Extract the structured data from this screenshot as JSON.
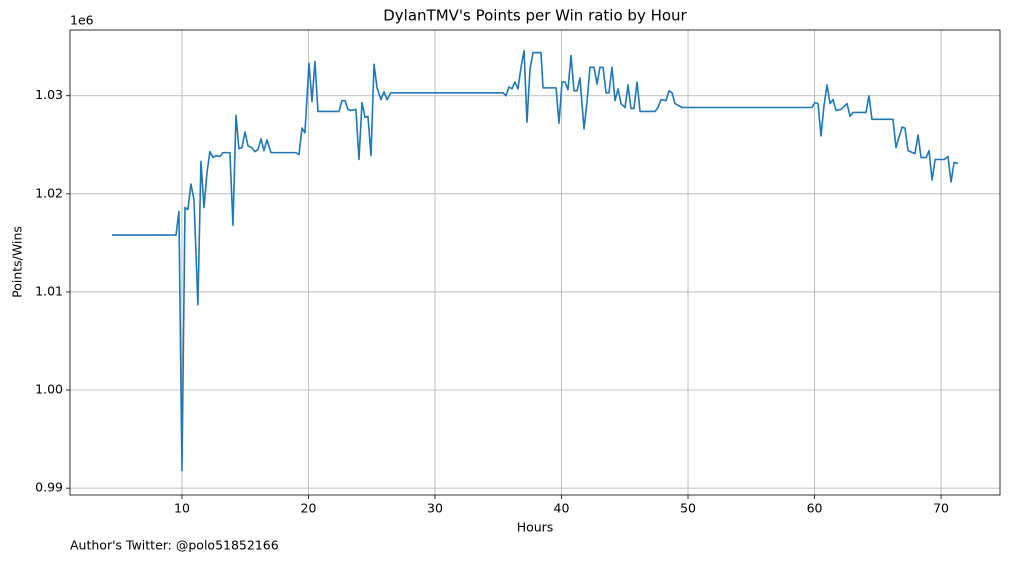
{
  "chart_data": {
    "type": "line",
    "title": "DylanTMV's Points per Win ratio by Hour",
    "x_label": "Hours",
    "y_label": "Points/Wins",
    "y_offset_label": "1e6",
    "footer": "Author's Twitter: @polo51852166",
    "color": "#1f77b4",
    "grid": true,
    "xlim": [
      1.15,
      74.66
    ],
    "ylim": [
      0.9893,
      1.0367
    ],
    "xticks": [
      10,
      20,
      30,
      40,
      50,
      60,
      70
    ],
    "yticks": [
      0.99,
      {
        "value": 1,
        "label": "1.00"
      },
      1.01,
      1.02,
      1.03
    ],
    "x": [
      4.47,
      9.53,
      9.76,
      10.0,
      10.24,
      10.47,
      10.71,
      10.95,
      11.26,
      11.5,
      11.74,
      11.98,
      12.21,
      12.45,
      12.69,
      13.0,
      13.24,
      13.79,
      14.03,
      14.27,
      14.5,
      14.74,
      14.98,
      15.22,
      15.53,
      15.77,
      16.0,
      16.25,
      16.48,
      16.72,
      17.04,
      19.0,
      19.25,
      19.49,
      19.72,
      20.04,
      20.28,
      20.51,
      20.75,
      22.41,
      22.65,
      22.89,
      23.12,
      23.36,
      23.75,
      23.99,
      24.23,
      24.47,
      24.7,
      24.94,
      25.18,
      25.42,
      25.73,
      25.97,
      26.21,
      26.52,
      35.38,
      35.61,
      35.85,
      36.09,
      36.32,
      36.56,
      36.8,
      37.04,
      37.27,
      37.51,
      37.75,
      38.38,
      38.54,
      39.57,
      39.8,
      40.04,
      40.28,
      40.51,
      40.75,
      40.99,
      41.23,
      41.46,
      41.78,
      42.02,
      42.25,
      42.57,
      42.81,
      43.04,
      43.28,
      43.52,
      43.75,
      43.99,
      44.23,
      44.47,
      44.7,
      45.02,
      45.26,
      45.49,
      45.73,
      45.97,
      46.21,
      47.39,
      47.63,
      47.87,
      48.26,
      48.5,
      48.74,
      48.97,
      49.53,
      59.8,
      60.04,
      60.28,
      60.51,
      60.75,
      60.99,
      61.23,
      61.46,
      61.7,
      62.09,
      62.57,
      62.81,
      63.04,
      64.07,
      64.3,
      64.54,
      66.2,
      66.44,
      66.68,
      66.92,
      67.15,
      67.39,
      67.94,
      68.18,
      68.42,
      68.82,
      69.05,
      69.29,
      69.53,
      70.24,
      70.55,
      70.79,
      71.03,
      71.34
    ],
    "values": [
      1.0158,
      1.0158,
      1.0182,
      0.9918,
      1.0186,
      1.0184,
      1.021,
      1.0194,
      1.0087,
      1.0233,
      1.0186,
      1.0222,
      1.0243,
      1.0237,
      1.0239,
      1.0238,
      1.0242,
      1.0242,
      1.0168,
      1.028,
      1.0246,
      1.0247,
      1.0263,
      1.0249,
      1.0247,
      1.0243,
      1.0245,
      1.0256,
      1.0244,
      1.0255,
      1.0242,
      1.0242,
      1.024,
      1.0267,
      1.0262,
      1.0333,
      1.0294,
      1.0335,
      1.0284,
      1.0284,
      1.0295,
      1.0295,
      1.0286,
      1.0285,
      1.0286,
      1.0235,
      1.0293,
      1.0278,
      1.0279,
      1.0239,
      1.0332,
      1.0308,
      1.0296,
      1.0304,
      1.0296,
      1.0303,
      1.0303,
      1.03,
      1.0309,
      1.0307,
      1.0314,
      1.0307,
      1.0329,
      1.0346,
      1.0273,
      1.0327,
      1.0344,
      1.0344,
      1.0308,
      1.0308,
      1.0272,
      1.0314,
      1.0314,
      1.0306,
      1.0341,
      1.0305,
      1.0305,
      1.0318,
      1.0266,
      1.0294,
      1.0329,
      1.0329,
      1.0312,
      1.0329,
      1.0329,
      1.0303,
      1.0303,
      1.0329,
      1.0295,
      1.0307,
      1.0292,
      1.0288,
      1.0311,
      1.0287,
      1.0287,
      1.0314,
      1.0284,
      1.0284,
      1.0288,
      1.0296,
      1.0295,
      1.0305,
      1.0303,
      1.0292,
      1.0288,
      1.0288,
      1.0293,
      1.0292,
      1.0259,
      1.029,
      1.0311,
      1.0292,
      1.0296,
      1.0285,
      1.0286,
      1.0292,
      1.0279,
      1.0283,
      1.0283,
      1.03,
      1.0276,
      1.0276,
      1.0247,
      1.0258,
      1.0268,
      1.0267,
      1.0244,
      1.0241,
      1.026,
      1.0237,
      1.0237,
      1.0244,
      1.0214,
      1.0235,
      1.0235,
      1.0238,
      1.0212,
      1.0232,
      1.0231
    ]
  }
}
